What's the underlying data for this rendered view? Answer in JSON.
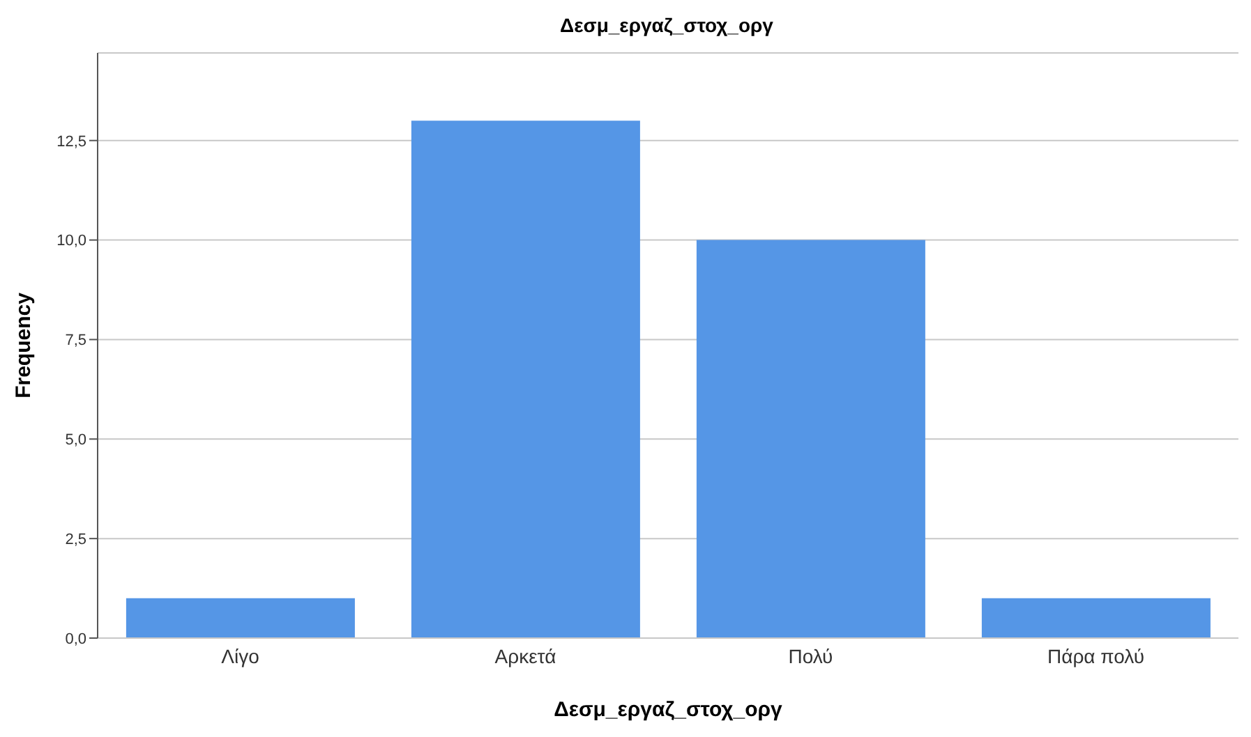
{
  "chart_data": {
    "type": "bar",
    "title": "Δεσμ_εργαζ_στοχ_οργ",
    "xlabel": "Δεσμ_εργαζ_στοχ_οργ",
    "ylabel": "Frequency",
    "categories": [
      "Λίγο",
      "Αρκετά",
      "Πολύ",
      "Πάρα πολύ"
    ],
    "values": [
      1,
      13,
      10,
      1
    ],
    "color": "#5596e6",
    "ylim": [
      0,
      14.7
    ],
    "yticks": [
      {
        "value": 0,
        "label": "0,0"
      },
      {
        "value": 2.5,
        "label": "2,5"
      },
      {
        "value": 5,
        "label": "5,0"
      },
      {
        "value": 7.5,
        "label": "7,5"
      },
      {
        "value": 10,
        "label": "10,0"
      },
      {
        "value": 12.5,
        "label": "12,5"
      }
    ],
    "grid": "y"
  }
}
